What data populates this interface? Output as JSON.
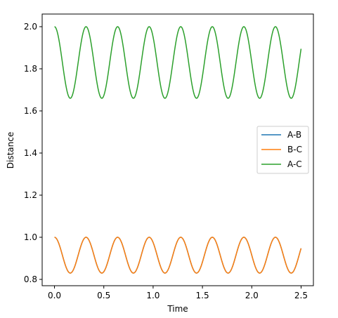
{
  "chart_data": {
    "type": "line",
    "title": "",
    "xlabel": "Time",
    "ylabel": "Distance",
    "xlim": [
      -0.125,
      2.625
    ],
    "ylim": [
      0.77,
      2.06
    ],
    "xticks": [
      "0.0",
      "0.5",
      "1.0",
      "1.5",
      "2.0",
      "2.5"
    ],
    "xtick_values": [
      0.0,
      0.5,
      1.0,
      1.5,
      2.0,
      2.5
    ],
    "yticks": [
      "0.8",
      "1.0",
      "1.2",
      "1.4",
      "1.6",
      "1.8",
      "2.0"
    ],
    "ytick_values": [
      0.8,
      1.0,
      1.2,
      1.4,
      1.6,
      1.8,
      2.0
    ],
    "grid": false,
    "legend_position": "center-right",
    "series": [
      {
        "name": "A-B",
        "color": "#1f77b4",
        "x_range": [
          0.0,
          2.5
        ],
        "max": 1.0,
        "min": 0.83,
        "period": 0.32
      },
      {
        "name": "B-C",
        "color": "#ff7f0e",
        "x_range": [
          0.0,
          2.5
        ],
        "max": 1.0,
        "min": 0.83,
        "period": 0.32
      },
      {
        "name": "A-C",
        "color": "#2ca02c",
        "x_range": [
          0.0,
          2.5
        ],
        "max": 2.0,
        "min": 1.66,
        "period": 0.32
      }
    ]
  }
}
